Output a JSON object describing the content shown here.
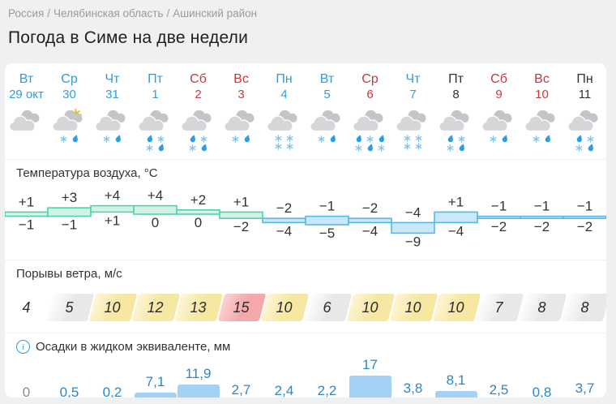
{
  "breadcrumb": {
    "items": [
      "Россия",
      "Челябинская область",
      "Ашинский район"
    ],
    "separator": "/"
  },
  "title": "Погода в Симе на две недели",
  "days": [
    {
      "name": "Вт",
      "date": "29 окт",
      "color": "blue"
    },
    {
      "name": "Ср",
      "date": "30",
      "color": "blue"
    },
    {
      "name": "Чт",
      "date": "31",
      "color": "blue"
    },
    {
      "name": "Пт",
      "date": "1",
      "color": "blue"
    },
    {
      "name": "Сб",
      "date": "2",
      "color": "red"
    },
    {
      "name": "Вс",
      "date": "3",
      "color": "red"
    },
    {
      "name": "Пн",
      "date": "4",
      "color": "blue"
    },
    {
      "name": "Вт",
      "date": "5",
      "color": "blue"
    },
    {
      "name": "Ср",
      "date": "6",
      "color": "red"
    },
    {
      "name": "Чт",
      "date": "7",
      "color": "blue"
    },
    {
      "name": "Пт",
      "date": "8",
      "color": "dark"
    },
    {
      "name": "Сб",
      "date": "9",
      "color": "red"
    },
    {
      "name": "Вс",
      "date": "10",
      "color": "red"
    },
    {
      "name": "Пн",
      "date": "11",
      "color": "dark"
    }
  ],
  "icons": [
    {
      "name": "cloudy",
      "sun": false,
      "rows": []
    },
    {
      "name": "cloudy-sun-sleet",
      "sun": true,
      "rows": [
        [
          "snow",
          "rain"
        ]
      ]
    },
    {
      "name": "cloudy-sleet",
      "sun": false,
      "rows": [
        [
          "snow",
          "rain"
        ]
      ]
    },
    {
      "name": "cloudy-heavy-sleet",
      "sun": false,
      "rows": [
        [
          "rain",
          "snow"
        ],
        [
          "snow",
          "rain"
        ]
      ]
    },
    {
      "name": "cloudy-heavy-sleet",
      "sun": false,
      "rows": [
        [
          "rain",
          "snow"
        ],
        [
          "snow",
          "rain"
        ]
      ]
    },
    {
      "name": "cloudy-sleet",
      "sun": false,
      "rows": [
        [
          "snow",
          "rain"
        ]
      ]
    },
    {
      "name": "cloudy-snow",
      "sun": false,
      "rows": [
        [
          "snow",
          "snow"
        ],
        [
          "snow",
          "snow"
        ]
      ]
    },
    {
      "name": "cloudy-sleet",
      "sun": false,
      "rows": [
        [
          "snow",
          "rain"
        ]
      ]
    },
    {
      "name": "cloudy-heavy-mixed",
      "sun": false,
      "rows": [
        [
          "rain",
          "snow",
          "rain"
        ],
        [
          "snow",
          "rain",
          "snow"
        ]
      ]
    },
    {
      "name": "cloudy-snow",
      "sun": false,
      "rows": [
        [
          "snow",
          "snow"
        ],
        [
          "snow",
          "snow"
        ]
      ]
    },
    {
      "name": "cloudy-heavy-sleet",
      "sun": false,
      "rows": [
        [
          "rain",
          "snow"
        ],
        [
          "snow",
          "rain"
        ]
      ]
    },
    {
      "name": "cloudy-sleet",
      "sun": false,
      "rows": [
        [
          "snow",
          "rain"
        ]
      ]
    },
    {
      "name": "cloudy-sleet",
      "sun": false,
      "rows": [
        [
          "snow",
          "rain"
        ]
      ]
    },
    {
      "name": "cloudy-heavy-sleet",
      "sun": false,
      "rows": [
        [
          "rain",
          "snow"
        ],
        [
          "snow",
          "rain"
        ]
      ]
    }
  ],
  "chart_data": [
    {
      "type": "area",
      "name": "air-temperature",
      "title": "Температура воздуха, °C",
      "categories": [
        "Вт 29 окт",
        "Ср 30",
        "Чт 31",
        "Пт 1",
        "Сб 2",
        "Вс 3",
        "Пн 4",
        "Вт 5",
        "Ср 6",
        "Чт 7",
        "Пт 8",
        "Сб 9",
        "Вс 10",
        "Пн 11"
      ],
      "series": [
        {
          "name": "max",
          "values": [
            1,
            3,
            4,
            4,
            2,
            1,
            -2,
            -1,
            -2,
            -4,
            1,
            -1,
            -1,
            -1
          ]
        },
        {
          "name": "min",
          "values": [
            -1,
            -1,
            1,
            0,
            0,
            -2,
            -4,
            -5,
            -4,
            -9,
            -4,
            -2,
            -2,
            -2
          ]
        }
      ],
      "display_max": [
        "+1",
        "+3",
        "+4",
        "+4",
        "+2",
        "+1",
        "−2",
        "−1",
        "−2",
        "−4",
        "+1",
        "−1",
        "−1",
        "−1"
      ],
      "display_min": [
        "−1",
        "−1",
        "+1",
        "0",
        "0",
        "−2",
        "−4",
        "−5",
        "−4",
        "−9",
        "−4",
        "−2",
        "−2",
        "−2"
      ],
      "band_palette": [
        "green",
        "green",
        "green",
        "green",
        "green",
        "green",
        "blue",
        "blue",
        "blue",
        "blue",
        "blue",
        "blue",
        "blue",
        "blue"
      ]
    },
    {
      "type": "table",
      "name": "wind-gusts",
      "title": "Порывы ветра, м/с",
      "categories": [
        "Вт 29 окт",
        "Ср 30",
        "Чт 31",
        "Пт 1",
        "Сб 2",
        "Вс 3",
        "Пн 4",
        "Вт 5",
        "Ср 6",
        "Чт 7",
        "Пт 8",
        "Сб 9",
        "Вс 10",
        "Пн 11"
      ],
      "values": [
        4,
        5,
        10,
        12,
        13,
        15,
        10,
        6,
        10,
        10,
        10,
        7,
        8,
        8
      ],
      "levels": [
        "none",
        "gray",
        "yellow",
        "yellow",
        "yellow",
        "red",
        "yellow",
        "gray",
        "yellow",
        "yellow",
        "yellow",
        "gray",
        "gray",
        "gray"
      ]
    },
    {
      "type": "bar",
      "name": "precipitation",
      "title": "Осадки в жидком эквиваленте, мм",
      "categories": [
        "Вт 29 окт",
        "Ср 30",
        "Чт 31",
        "Пт 1",
        "Сб 2",
        "Вс 3",
        "Пн 4",
        "Вт 5",
        "Ср 6",
        "Чт 7",
        "Пт 8",
        "Сб 9",
        "Вс 10",
        "Пн 11"
      ],
      "values": [
        0,
        0.5,
        0.2,
        7.1,
        11.9,
        2.7,
        2.4,
        2.2,
        17,
        3.8,
        8.1,
        2.5,
        0.8,
        3.7
      ],
      "labels": [
        "0",
        "0,5",
        "0,2",
        "7,1",
        "11,9",
        "2,7",
        "2,4",
        "2,2",
        "17",
        "3,8",
        "8,1",
        "2,5",
        "0,8",
        "3,7"
      ]
    }
  ],
  "colors": {
    "accent_blue": "#2f9ddd",
    "weekend_red": "#c43a3a",
    "text_dark": "#333333",
    "temp_green_fill": "#d2f3e4",
    "temp_green_stroke": "#4fd0ae",
    "temp_blue_fill": "#c9e9fb",
    "temp_blue_stroke": "#56b8e9",
    "wind_yellow": "#f6e7a2",
    "wind_gray": "#e8e8eb",
    "wind_red": "#f5a8ab",
    "precip_bar": "#a3d2f4",
    "precip_label": "#2b87cd",
    "cloud_front": "#d6d6d9",
    "cloud_back": "#c5c5c9",
    "sun_yellow": "#f2b50e",
    "snow_glyph": "#82c4ee",
    "rain_glyph": "#2b9de2"
  }
}
